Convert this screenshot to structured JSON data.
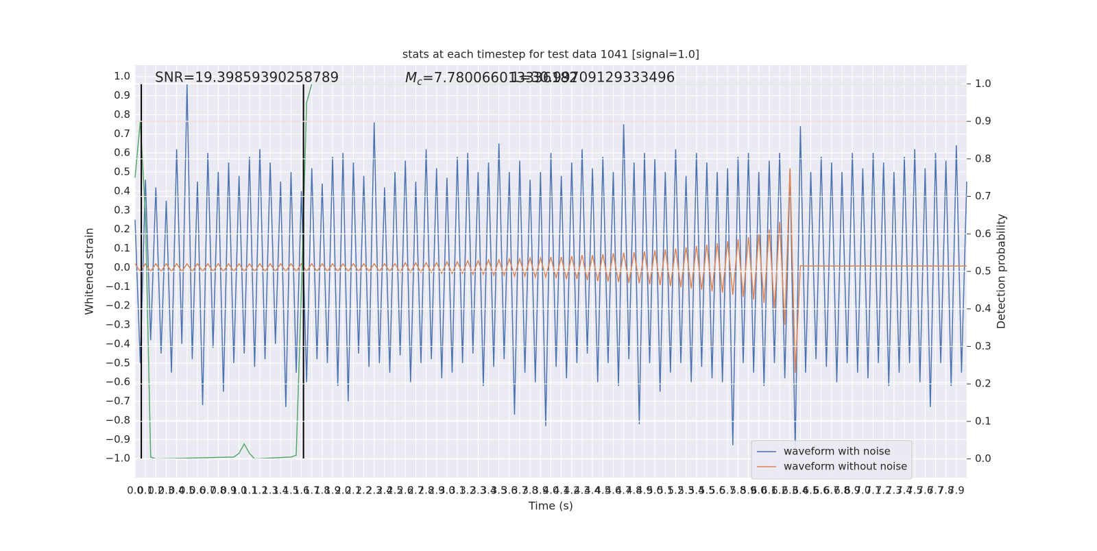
{
  "chart_data": {
    "type": "line",
    "title": "stats at each timestep for test data 1041 [signal=1.0]",
    "x_label": "Time (s)",
    "y_label": "Whitened strain",
    "y2_label": "Detection probability",
    "annotations": [
      {
        "text": "SNR=19.39859390258789"
      },
      {
        "symbol": "M",
        "subscript": "c",
        "text": "=7.780066013336182"
      },
      {
        "text": "1=30.99709129333496"
      }
    ],
    "xlim": [
      0,
      8.0
    ],
    "ylim": [
      -1.1,
      1.06
    ],
    "y2lim": [
      -0.05,
      1.05
    ],
    "grid": true,
    "legend": "lower right",
    "xticks": [
      {
        "value": 0,
        "label": "0.0"
      },
      0.1,
      0.2,
      0.3,
      0.4,
      0.5,
      0.6,
      0.7,
      0.8,
      0.9,
      {
        "value": 1,
        "label": "1.0"
      },
      1.1,
      1.2,
      1.3,
      1.4,
      1.5,
      1.6,
      1.7,
      1.8,
      1.9,
      {
        "value": 2,
        "label": "2.0"
      },
      2.1,
      2.2,
      2.3,
      2.4,
      2.5,
      2.6,
      2.7,
      2.8,
      2.9,
      {
        "value": 3,
        "label": "3.0"
      },
      3.1,
      3.2,
      3.3,
      3.4,
      3.5,
      3.6,
      3.7,
      3.8,
      3.9,
      {
        "value": 4,
        "label": "4.0"
      },
      4.1,
      4.2,
      4.3,
      4.4,
      4.5,
      4.6,
      4.7,
      4.8,
      4.9,
      {
        "value": 5,
        "label": "5.0"
      },
      5.1,
      5.2,
      5.3,
      5.4,
      5.5,
      5.6,
      5.7,
      5.8,
      5.9,
      {
        "value": 6,
        "label": "6.0"
      },
      6.1,
      6.2,
      6.3,
      6.4,
      6.5,
      6.6,
      6.7,
      6.8,
      6.9,
      {
        "value": 7,
        "label": "7.0"
      },
      7.1,
      7.2,
      7.3,
      7.4,
      7.5,
      7.6,
      7.7,
      7.8,
      7.9
    ],
    "yticks": [
      {
        "value": -1,
        "label": "−1.0"
      },
      {
        "value": -0.9,
        "label": "−0.9"
      },
      {
        "value": -0.8,
        "label": "−0.8"
      },
      {
        "value": -0.7,
        "label": "−0.7"
      },
      {
        "value": -0.6,
        "label": "−0.6"
      },
      {
        "value": -0.5,
        "label": "−0.5"
      },
      {
        "value": -0.4,
        "label": "−0.4"
      },
      {
        "value": -0.3,
        "label": "−0.3"
      },
      {
        "value": -0.2,
        "label": "−0.2"
      },
      {
        "value": -0.1,
        "label": "−0.1"
      },
      {
        "value": 0,
        "label": "0.0"
      },
      0.1,
      0.2,
      0.3,
      0.4,
      0.5,
      0.6,
      0.7,
      0.8,
      0.9,
      {
        "value": 1,
        "label": "1.0"
      }
    ],
    "y2ticks": [
      {
        "value": 0,
        "label": "0.0"
      },
      0.1,
      0.2,
      0.3,
      0.4,
      0.5,
      0.6,
      0.7,
      0.8,
      0.9,
      {
        "value": 1,
        "label": "1.0"
      }
    ],
    "threshold": 0.9,
    "threshold_color": "#c44e52",
    "vlines": {
      "x": [
        0.06,
        1.62
      ],
      "ymin": -1.0,
      "ymax": 0.965,
      "color": "#000000"
    },
    "x": [
      0,
      0.05,
      0.1,
      0.15,
      0.2,
      0.25,
      0.3,
      0.35,
      0.4,
      0.45,
      0.5,
      0.55,
      0.6,
      0.65,
      0.7,
      0.75,
      0.8,
      0.85,
      0.9,
      0.95,
      1.0,
      1.05,
      1.1,
      1.15,
      1.2,
      1.25,
      1.3,
      1.35,
      1.4,
      1.45,
      1.5,
      1.55,
      1.6,
      1.65,
      1.7,
      1.75,
      1.8,
      1.85,
      1.9,
      1.95,
      2.0,
      2.05,
      2.1,
      2.15,
      2.2,
      2.25,
      2.3,
      2.35,
      2.4,
      2.45,
      2.5,
      2.55,
      2.6,
      2.65,
      2.7,
      2.75,
      2.8,
      2.85,
      2.9,
      2.95,
      3.0,
      3.05,
      3.1,
      3.15,
      3.2,
      3.25,
      3.3,
      3.35,
      3.4,
      3.45,
      3.5,
      3.55,
      3.6,
      3.65,
      3.7,
      3.75,
      3.8,
      3.85,
      3.9,
      3.95,
      4.0,
      4.05,
      4.1,
      4.15,
      4.2,
      4.25,
      4.3,
      4.35,
      4.4,
      4.45,
      4.5,
      4.55,
      4.6,
      4.65,
      4.7,
      4.75,
      4.8,
      4.85,
      4.9,
      4.95,
      5.0,
      5.05,
      5.1,
      5.15,
      5.2,
      5.25,
      5.3,
      5.35,
      5.4,
      5.45,
      5.5,
      5.55,
      5.6,
      5.65,
      5.7,
      5.75,
      5.8,
      5.85,
      5.9,
      5.95,
      6.0,
      6.05,
      6.1,
      6.15,
      6.2,
      6.25,
      6.3,
      6.35,
      6.4,
      6.45,
      6.5,
      6.55,
      6.6,
      6.65,
      6.7,
      6.75,
      6.8,
      6.85,
      6.9,
      6.95,
      7.0,
      7.05,
      7.1,
      7.15,
      7.2,
      7.25,
      7.3,
      7.35,
      7.4,
      7.45,
      7.5,
      7.55,
      7.6,
      7.65,
      7.7,
      7.75,
      7.8,
      7.85,
      7.9,
      7.95,
      8.0
    ],
    "series": [
      {
        "name": "waveform with noise",
        "color": "#4c72b0",
        "values": [
          0.25,
          -0.5,
          0.46,
          -0.38,
          0.42,
          -0.45,
          0.35,
          -0.55,
          0.62,
          -0.4,
          0.96,
          -0.48,
          0.45,
          -0.72,
          0.6,
          -0.42,
          0.5,
          -0.65,
          0.55,
          -0.5,
          0.48,
          -0.45,
          0.58,
          -0.52,
          0.62,
          -0.48,
          0.55,
          -0.4,
          0.45,
          -0.73,
          0.5,
          -0.55,
          0.4,
          -0.6,
          0.52,
          -0.48,
          0.44,
          -0.5,
          0.58,
          -0.62,
          0.6,
          -0.7,
          0.55,
          -0.45,
          0.48,
          -0.52,
          0.76,
          -0.5,
          0.42,
          -0.55,
          0.5,
          -0.46,
          0.56,
          -0.6,
          0.45,
          -0.5,
          0.62,
          -0.48,
          0.52,
          -0.58,
          0.47,
          -0.55,
          0.58,
          -0.5,
          0.6,
          -0.45,
          0.5,
          -0.62,
          0.55,
          -0.52,
          0.65,
          -0.48,
          0.5,
          -0.77,
          0.56,
          -0.55,
          0.46,
          -0.6,
          0.5,
          -0.83,
          0.6,
          -0.52,
          0.48,
          -0.58,
          0.55,
          -0.5,
          0.62,
          -0.45,
          0.52,
          -0.6,
          0.58,
          -0.5,
          0.5,
          -0.62,
          0.75,
          -0.48,
          0.55,
          -0.82,
          0.6,
          -0.5,
          0.57,
          -0.65,
          0.5,
          -0.55,
          0.62,
          -0.5,
          0.48,
          -0.6,
          0.6,
          -0.52,
          0.55,
          -0.58,
          0.5,
          -0.6,
          0.52,
          -0.93,
          0.58,
          -0.5,
          0.6,
          -0.55,
          0.5,
          -0.62,
          0.56,
          -0.5,
          0.6,
          -0.58,
          0.52,
          -0.95,
          0.74,
          -0.55,
          0.5,
          -0.48,
          0.58,
          -0.52,
          0.55,
          -0.6,
          0.5,
          -0.5,
          0.6,
          -0.55,
          0.52,
          -0.58,
          0.6,
          -0.5,
          0.55,
          -0.62,
          0.5,
          -0.55,
          0.58,
          -0.5,
          0.62,
          -0.6,
          0.52,
          -0.73,
          0.6,
          -0.5,
          0.56,
          -0.62,
          0.64,
          -0.55,
          0.45
        ]
      },
      {
        "name": "waveform without noise",
        "color": "#dd8452",
        "values": [
          0.02,
          -0.02,
          0.02,
          -0.02,
          0.02,
          -0.02,
          0.02,
          -0.02,
          0.02,
          -0.02,
          0.02,
          -0.02,
          0.02,
          -0.02,
          0.02,
          -0.02,
          0.02,
          -0.02,
          0.02,
          -0.02,
          0.02,
          -0.02,
          0.02,
          -0.02,
          0.02,
          -0.02,
          0.02,
          -0.02,
          0.02,
          -0.02,
          0.02,
          -0.02,
          0.02,
          -0.02,
          0.02,
          -0.02,
          0.02,
          -0.02,
          0.02,
          -0.02,
          0.02,
          -0.02,
          0.02,
          -0.02,
          0.02,
          -0.02,
          0.02,
          -0.02,
          0.02,
          -0.02,
          0.02,
          -0.025,
          0.025,
          -0.025,
          0.025,
          -0.025,
          0.025,
          -0.025,
          0.025,
          -0.03,
          0.03,
          -0.03,
          0.03,
          -0.03,
          0.035,
          -0.035,
          0.035,
          -0.035,
          0.04,
          -0.04,
          0.04,
          -0.04,
          0.045,
          -0.045,
          0.045,
          -0.045,
          0.05,
          -0.05,
          0.05,
          -0.05,
          0.055,
          -0.055,
          0.055,
          -0.06,
          0.06,
          -0.06,
          0.065,
          -0.065,
          0.065,
          -0.07,
          0.07,
          -0.072,
          0.075,
          -0.075,
          0.078,
          -0.08,
          0.08,
          -0.082,
          0.085,
          -0.087,
          0.09,
          -0.092,
          0.095,
          -0.097,
          0.1,
          -0.103,
          0.106,
          -0.11,
          0.113,
          -0.116,
          0.12,
          -0.124,
          0.128,
          -0.132,
          0.137,
          -0.142,
          0.148,
          -0.154,
          0.16,
          -0.167,
          0.175,
          -0.185,
          0.2,
          -0.215,
          0.24,
          -0.3,
          0.52,
          -0.55,
          0.01,
          0.008,
          0.008,
          0.008,
          0.008,
          0.008,
          0.008,
          0.008,
          0.008,
          0.008,
          0.008,
          0.008,
          0.008,
          0.008,
          0.008,
          0.008,
          0.008,
          0.008,
          0.008,
          0.008,
          0.008,
          0.008,
          0.008,
          0.008,
          0.008,
          0.008,
          0.008,
          0.008,
          0.008,
          0.008,
          0.008,
          0.008,
          0.008
        ]
      },
      {
        "color": "#55a868",
        "axis": "y2",
        "x": [
          0,
          0.05,
          0.1,
          0.15,
          0.2,
          0.95,
          1.0,
          1.05,
          1.1,
          1.15,
          1.5,
          1.55,
          1.6,
          1.65,
          1.7,
          7.95
        ],
        "values": [
          0.75,
          0.9,
          0.65,
          0.005,
          0.0,
          0.005,
          0.015,
          0.04,
          0.015,
          0.0,
          0.005,
          0.01,
          0.45,
          0.95,
          1.0,
          1.0
        ]
      }
    ]
  }
}
